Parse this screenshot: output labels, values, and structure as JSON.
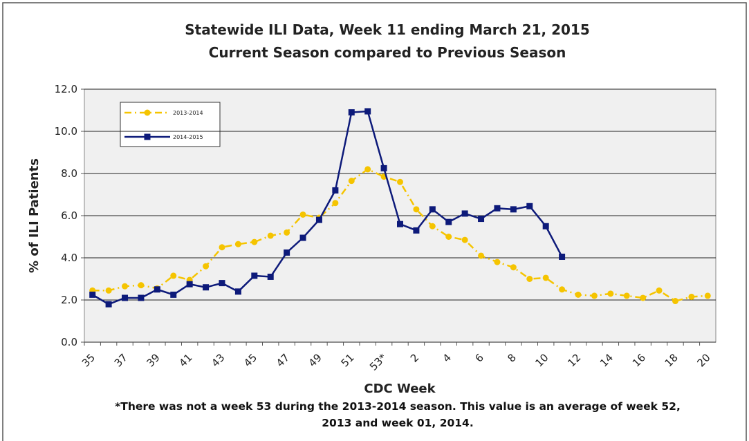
{
  "chart_data": {
    "type": "line",
    "title": "Statewide ILI Data, Week 11 ending March 21, 2015",
    "subtitle": "Current Season compared to Previous Season",
    "y_label": "% of ILI Patients",
    "x_label": "CDC Week",
    "note": "*There was not a week 53 during the 2013-2014 season. This value is an average of week 52, 2013 and week 01, 2014.",
    "categories": [
      "35",
      null,
      "37",
      null,
      "39",
      null,
      "41",
      null,
      "43",
      null,
      "45",
      null,
      "47",
      null,
      "49",
      null,
      "51",
      null,
      "53*",
      null,
      "2",
      null,
      "4",
      null,
      "6",
      null,
      "8",
      null,
      "10",
      null,
      "12",
      null,
      "14",
      null,
      "16",
      null,
      "18",
      null,
      "20"
    ],
    "series": [
      {
        "name": "2013-2014",
        "color": "#f5c400",
        "dashed": true,
        "marker": "circle",
        "values": [
          2.45,
          2.45,
          2.65,
          2.7,
          2.55,
          3.15,
          2.95,
          3.6,
          4.5,
          4.65,
          4.75,
          5.05,
          5.2,
          6.05,
          5.9,
          6.6,
          7.65,
          8.2,
          7.85,
          7.6,
          6.3,
          5.5,
          5.0,
          4.85,
          4.1,
          3.8,
          3.55,
          3.0,
          3.05,
          2.5,
          2.25,
          2.2,
          2.3,
          2.2,
          2.1,
          2.45,
          1.95,
          2.15,
          2.2
        ]
      },
      {
        "name": "2014-2015",
        "color": "#0d1a7a",
        "dashed": false,
        "marker": "square",
        "values": [
          2.25,
          1.8,
          2.1,
          2.1,
          2.5,
          2.25,
          2.75,
          2.6,
          2.8,
          2.4,
          3.15,
          3.1,
          4.25,
          4.95,
          5.8,
          7.2,
          10.9,
          10.95,
          8.25,
          5.6,
          5.3,
          6.3,
          5.7,
          6.1,
          5.85,
          6.35,
          6.3,
          6.45,
          5.5,
          4.05,
          null,
          null,
          null,
          null,
          null,
          null,
          null,
          null,
          null
        ]
      }
    ],
    "ylim": [
      0,
      12
    ],
    "yticks": [
      {
        "value": 0,
        "label": "0.0"
      },
      {
        "value": 2,
        "label": "2.0"
      },
      {
        "value": 4,
        "label": "4.0"
      },
      {
        "value": 6,
        "label": "6.0"
      },
      {
        "value": 8,
        "label": "8.0"
      },
      {
        "value": 10,
        "label": "10.0"
      },
      {
        "value": 12,
        "label": "12.0"
      }
    ],
    "grid": true,
    "legend": "top-left"
  }
}
